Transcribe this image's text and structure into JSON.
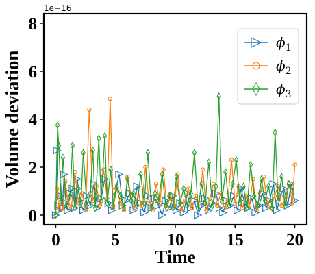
{
  "chart_data": {
    "type": "line",
    "title": "",
    "xlabel": "Time",
    "ylabel": "Volume deviation",
    "y_offset_label": "1e−16",
    "xlim": [
      -1,
      21
    ],
    "ylim": [
      -0.4,
      8.4
    ],
    "xticks": [
      0,
      5,
      10,
      15,
      20
    ],
    "xtick_labels": [
      "0",
      "5",
      "10",
      "15",
      "20"
    ],
    "yticks": [
      0,
      2,
      4,
      6,
      8
    ],
    "ytick_labels": [
      "0",
      "2",
      "4",
      "6",
      "8"
    ],
    "grid": false,
    "legend_position": "top-right",
    "series": [
      {
        "name": "ϕ",
        "subscript": "1",
        "color": "#1f77b4",
        "marker": "triangle-right",
        "x": [
          0.0,
          0.1,
          0.2,
          0.3,
          0.4,
          0.55,
          0.7,
          0.85,
          1.0,
          1.2,
          1.4,
          1.6,
          1.8,
          2.0,
          2.3,
          2.6,
          2.9,
          3.2,
          3.5,
          3.8,
          4.1,
          4.4,
          4.7,
          5.0,
          5.3,
          5.6,
          5.9,
          6.2,
          6.5,
          6.8,
          7.1,
          7.4,
          7.7,
          8.0,
          8.3,
          8.6,
          8.9,
          9.2,
          9.5,
          9.8,
          10.1,
          10.4,
          10.7,
          11.0,
          11.3,
          11.6,
          11.9,
          12.2,
          12.5,
          12.8,
          13.1,
          13.4,
          13.7,
          14.0,
          14.3,
          14.6,
          14.9,
          15.2,
          15.5,
          15.8,
          16.1,
          16.4,
          16.7,
          17.0,
          17.3,
          17.6,
          17.9,
          18.2,
          18.5,
          18.8,
          19.1,
          19.4,
          19.7,
          20.0
        ],
        "y": [
          0.0,
          2.7,
          0.4,
          0.2,
          0.8,
          0.3,
          1.7,
          0.5,
          0.2,
          0.9,
          1.1,
          0.3,
          1.5,
          0.6,
          0.2,
          0.8,
          0.4,
          1.3,
          0.3,
          0.7,
          1.5,
          0.5,
          0.2,
          1.0,
          1.7,
          0.4,
          0.6,
          0.9,
          0.2,
          1.2,
          0.5,
          0.1,
          0.8,
          0.3,
          0.7,
          0.4,
          0.0,
          0.6,
          0.3,
          0.8,
          0.2,
          0.5,
          0.1,
          0.9,
          0.3,
          0.6,
          0.0,
          0.4,
          0.7,
          0.2,
          0.5,
          0.9,
          0.3,
          0.1,
          0.6,
          0.4,
          0.8,
          0.2,
          1.1,
          0.5,
          0.3,
          0.7,
          0.1,
          0.4,
          0.9,
          0.3,
          0.6,
          1.3,
          0.2,
          0.8,
          1.1,
          0.4,
          1.3,
          0.6
        ]
      },
      {
        "name": "ϕ",
        "subscript": "2",
        "color": "#ff7f0e",
        "marker": "circle",
        "x": [
          0.0,
          0.1,
          0.25,
          0.4,
          0.6,
          0.8,
          1.0,
          1.3,
          1.6,
          1.9,
          2.2,
          2.5,
          2.8,
          3.1,
          3.4,
          3.7,
          4.0,
          4.3,
          4.55,
          4.8,
          5.1,
          5.4,
          5.7,
          6.0,
          6.3,
          6.6,
          6.9,
          7.2,
          7.5,
          7.8,
          8.1,
          8.4,
          8.7,
          9.0,
          9.3,
          9.6,
          9.9,
          10.2,
          10.5,
          10.8,
          11.1,
          11.4,
          11.7,
          12.0,
          12.3,
          12.6,
          12.9,
          13.2,
          13.5,
          13.8,
          14.1,
          14.4,
          14.7,
          15.0,
          15.3,
          15.6,
          15.9,
          16.2,
          16.5,
          16.8,
          17.1,
          17.4,
          17.7,
          18.0,
          18.3,
          18.6,
          18.9,
          19.2,
          19.5,
          19.8,
          20.0
        ],
        "y": [
          0.0,
          1.1,
          0.3,
          0.8,
          0.2,
          1.4,
          0.6,
          0.3,
          1.8,
          0.5,
          0.9,
          0.2,
          4.4,
          0.6,
          1.2,
          0.4,
          1.9,
          0.7,
          4.85,
          0.3,
          1.1,
          0.5,
          0.2,
          1.6,
          0.8,
          0.3,
          0.9,
          0.4,
          2.0,
          0.6,
          0.2,
          1.3,
          0.5,
          1.9,
          0.3,
          0.8,
          0.4,
          1.7,
          0.2,
          0.6,
          1.1,
          0.3,
          0.8,
          0.5,
          1.9,
          0.2,
          0.7,
          1.3,
          0.4,
          0.9,
          0.3,
          0.6,
          2.3,
          0.5,
          1.2,
          0.3,
          0.8,
          0.4,
          1.5,
          0.2,
          0.9,
          1.6,
          0.5,
          0.3,
          0.8,
          1.2,
          0.4,
          0.7,
          1.3,
          0.5,
          2.1
        ]
      },
      {
        "name": "ϕ",
        "subscript": "3",
        "color": "#2ca02c",
        "marker": "thin-diamond",
        "x": [
          0.0,
          0.15,
          0.25,
          0.45,
          0.6,
          0.9,
          1.2,
          1.4,
          1.6,
          1.9,
          2.1,
          2.3,
          2.6,
          2.9,
          3.1,
          3.3,
          3.6,
          3.8,
          4.1,
          4.3,
          4.6,
          4.8,
          5.1,
          5.4,
          5.7,
          6.0,
          6.3,
          6.5,
          6.8,
          7.1,
          7.4,
          7.7,
          8.0,
          8.3,
          8.6,
          8.9,
          9.2,
          9.5,
          9.8,
          10.1,
          10.4,
          10.7,
          11.0,
          11.3,
          11.6,
          11.9,
          12.2,
          12.5,
          12.8,
          13.1,
          13.4,
          13.65,
          13.9,
          14.2,
          14.5,
          14.8,
          15.1,
          15.4,
          15.7,
          16.0,
          16.3,
          16.6,
          16.9,
          17.2,
          17.5,
          17.8,
          18.1,
          18.35,
          18.6,
          18.9,
          19.2,
          19.5,
          19.8
        ],
        "y": [
          0.0,
          3.75,
          2.9,
          0.6,
          2.4,
          0.4,
          0.8,
          2.9,
          0.3,
          1.1,
          0.5,
          2.6,
          0.4,
          0.9,
          2.7,
          0.3,
          3.2,
          0.6,
          3.3,
          0.5,
          1.9,
          0.4,
          1.2,
          0.8,
          0.3,
          1.5,
          0.6,
          0.9,
          0.4,
          1.7,
          0.5,
          2.6,
          0.3,
          0.9,
          0.6,
          1.7,
          0.4,
          0.8,
          0.3,
          1.6,
          0.5,
          1.1,
          0.4,
          0.9,
          2.6,
          0.3,
          1.3,
          0.5,
          2.2,
          0.4,
          1.2,
          4.95,
          0.6,
          1.8,
          0.4,
          1.3,
          2.3,
          0.5,
          1.2,
          0.3,
          2.1,
          0.8,
          0.4,
          1.5,
          0.6,
          1.2,
          0.3,
          3.45,
          0.6,
          1.6,
          0.4,
          1.3,
          1.0
        ]
      }
    ]
  }
}
